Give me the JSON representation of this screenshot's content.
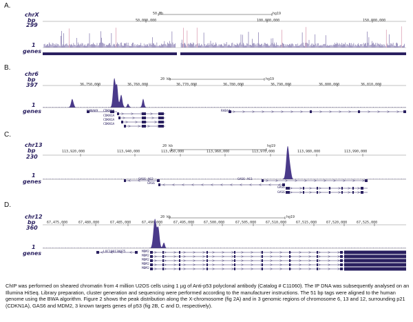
{
  "panels": [
    {
      "letter": "A.",
      "chrom": "chrX",
      "bp_label": "bp",
      "max": "299",
      "min": "1",
      "genes_label": "genes",
      "scale_left": "50 Mb",
      "scale_right": "hg19",
      "ticks": [
        "50,000,000",
        "100,000,000",
        "150,000,000"
      ]
    },
    {
      "letter": "B.",
      "chrom": "chr6",
      "bp_label": "bp",
      "max": "397",
      "min": "1",
      "genes_label": "genes",
      "scale_left": "20 kb",
      "scale_right": "hg19",
      "ticks": [
        "36,750,000",
        "36,760,000",
        "36,770,000",
        "36,780,000",
        "36,790,000",
        "36,800,000",
        "36,810,000"
      ],
      "genes": [
        "FHNAK9",
        "CDKN1A",
        "CDKN1A",
        "CDKN1A",
        "CDKN1A",
        "RAB44"
      ]
    },
    {
      "letter": "C.",
      "chrom": "chr13",
      "bp_label": "bp",
      "max": "230",
      "min": "1",
      "genes_label": "genes",
      "scale_left": "20 kb",
      "scale_right": "hg19",
      "ticks": [
        "113,920,000",
        "113,940,000",
        "113,950,000",
        "113,960,000",
        "113,970,000",
        "113,980,000",
        "113,990,000"
      ],
      "genes": [
        "GAS6-AS2",
        "GAS6-AS1",
        "GAS6",
        "GAS6",
        "GAS6"
      ]
    },
    {
      "letter": "D.",
      "chrom": "chr12",
      "bp_label": "bp",
      "max": "360",
      "min": "1",
      "genes_label": "genes",
      "scale_left": "20 kb",
      "scale_right": "hg19",
      "ticks": [
        "67,475,000",
        "67,480,000",
        "67,485,000",
        "67,490,000",
        "67,495,000",
        "67,500,000",
        "67,505,000",
        "67,510,000",
        "67,515,000",
        "67,520,000",
        "67,525,000"
      ],
      "genes": [
        "LOC100130075",
        "MDM2",
        "MDM2",
        "MDM2",
        "MDM2",
        "MDM2"
      ]
    }
  ],
  "caption": "ChIP was performed on sheared chromatin from 4 million U2OS cells using 1 µg of Anti-p53 polyclonal antibody (Catalog # C11060). The IP DNA was subsequently analysed on an Illumina HiSeq. Library preparation, cluster generation and sequencing were performed according to the manufacturer instructions. The 51 bp tags were aligned to the human genome using the BWA algorithm. Figure 2 shows the peak distribution along the X-chromosome (fig 2A) and in 3 genomic regions of chromosome 6, 13 and 12, surrounding p21 (CDKN1A), GAS6 and MDM2, 3 known targets genes of p53 (fig 2B, C and D, respectively).",
  "colors": {
    "signal": "#4a3a8a",
    "gene": "#2a2060"
  }
}
